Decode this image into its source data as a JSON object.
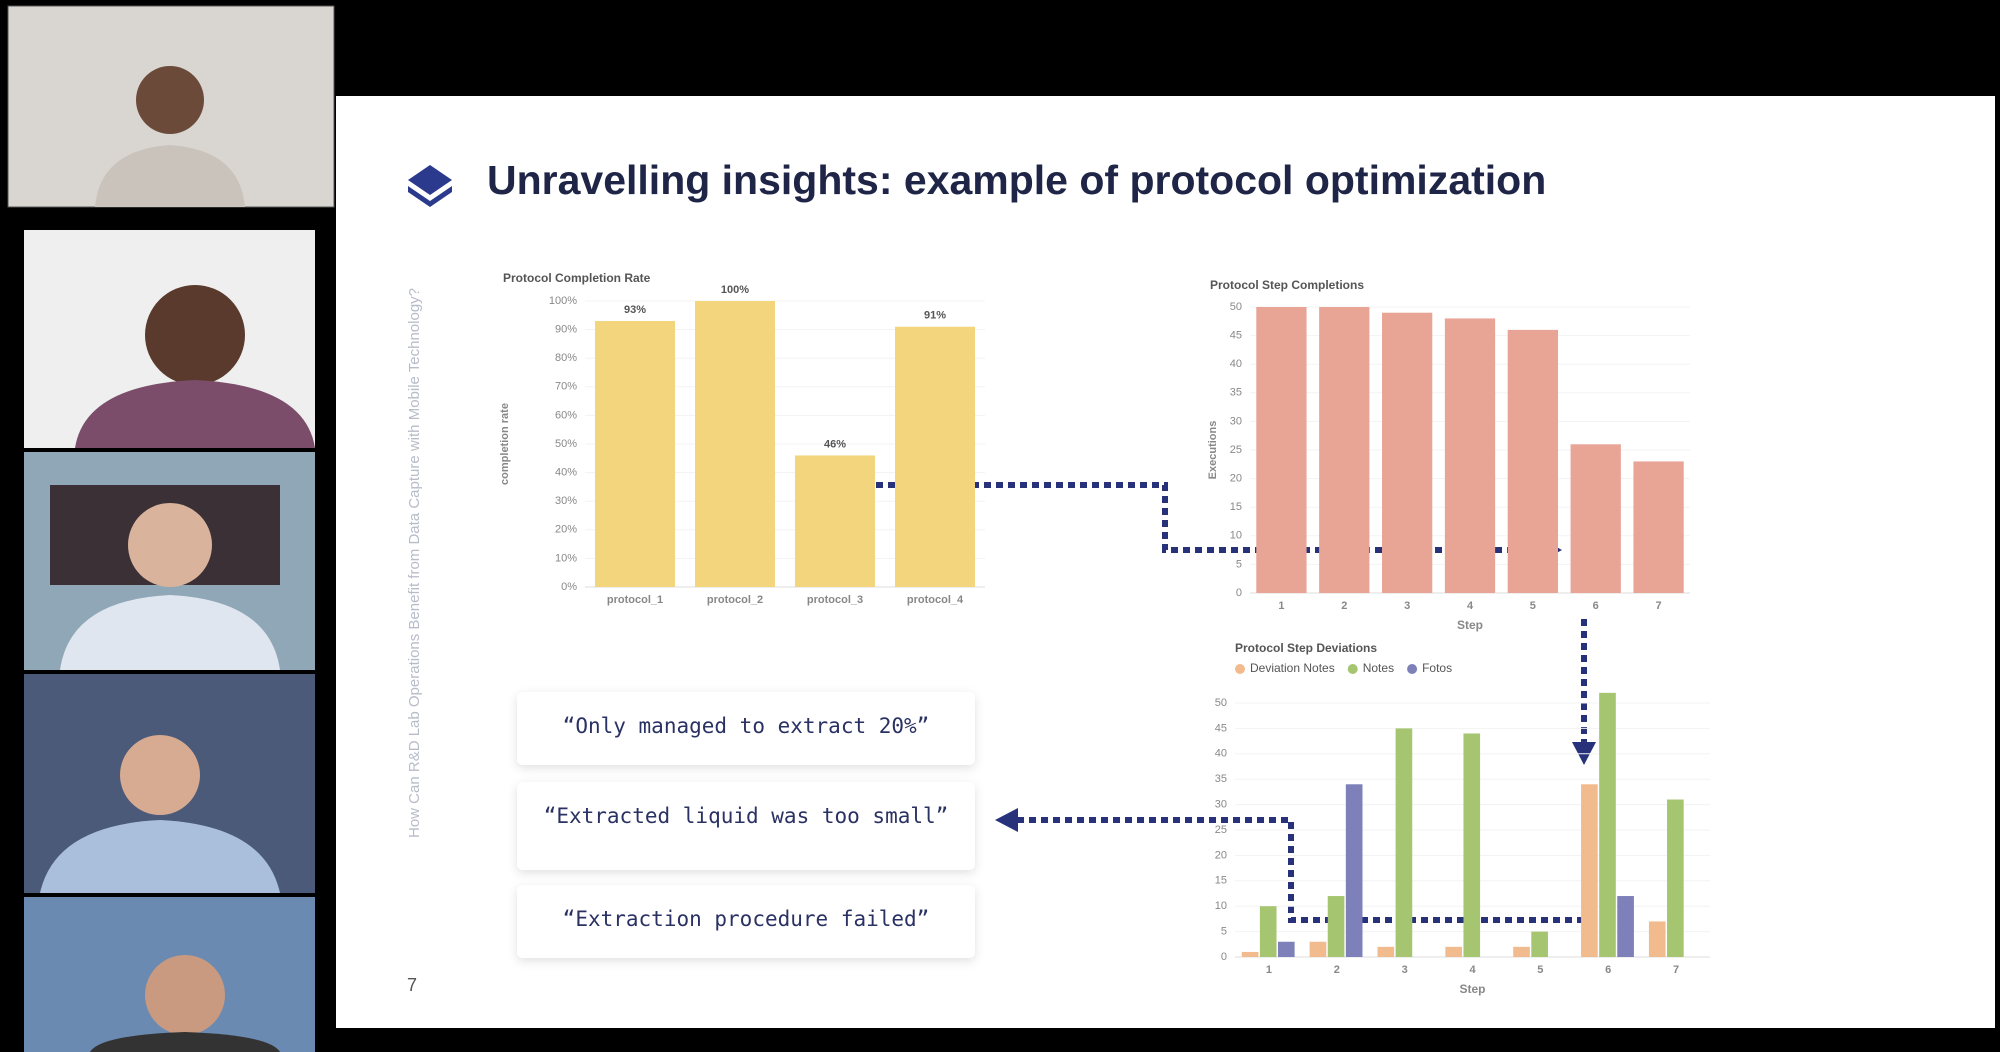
{
  "slide": {
    "title": "Unravelling insights: example of protocol optimization",
    "side_note": "How Can R&D Lab Operations Benefit from Data Capture with Mobile Technology?",
    "page_number": "7",
    "quotes": [
      "“Only managed to extract 20%”",
      "“Extracted liquid was too small”",
      "“Extraction procedure failed”"
    ]
  },
  "chart_data": [
    {
      "type": "bar",
      "title": "Protocol Completion Rate",
      "y_label": "completion rate",
      "categories": [
        "protocol_1",
        "protocol_2",
        "protocol_3",
        "protocol_4"
      ],
      "values": [
        93,
        100,
        46,
        91
      ],
      "value_labels": [
        "93%",
        "100%",
        "46%",
        "91%"
      ],
      "color": "#f2d57c",
      "ylim": [
        0,
        100
      ],
      "yticks": [
        {
          "value": 0,
          "label": "0%"
        },
        {
          "value": 10,
          "label": "10%"
        },
        {
          "value": 20,
          "label": "20%"
        },
        {
          "value": 30,
          "label": "30%"
        },
        {
          "value": 40,
          "label": "40%"
        },
        {
          "value": 50,
          "label": "50%"
        },
        {
          "value": 60,
          "label": "60%"
        },
        {
          "value": 70,
          "label": "70%"
        },
        {
          "value": 80,
          "label": "80%"
        },
        {
          "value": 90,
          "label": "90%"
        },
        {
          "value": 100,
          "label": "100%"
        }
      ]
    },
    {
      "type": "bar",
      "title": "Protocol Step Completions",
      "x_label": "Step",
      "y_label": "Executions",
      "categories": [
        "1",
        "2",
        "3",
        "4",
        "5",
        "6",
        "7"
      ],
      "values": [
        50,
        50,
        49,
        48,
        46,
        26,
        23
      ],
      "color": "#e8a595",
      "ylim": [
        0,
        50
      ],
      "yticks": [
        0,
        5,
        10,
        15,
        20,
        25,
        30,
        35,
        40,
        45,
        50
      ]
    },
    {
      "type": "grouped_bar",
      "title": "Protocol Step Deviations",
      "x_label": "Step",
      "categories": [
        "1",
        "2",
        "3",
        "4",
        "5",
        "6",
        "7"
      ],
      "series": [
        {
          "name": "Deviation Notes",
          "color": "#f2bb8e",
          "values": [
            1,
            3,
            2,
            2,
            2,
            34,
            7
          ]
        },
        {
          "name": "Notes",
          "color": "#a6c571",
          "values": [
            10,
            12,
            45,
            44,
            5,
            52,
            31
          ]
        },
        {
          "name": "Fotos",
          "color": "#7d80b9",
          "values": [
            3,
            34,
            0,
            0,
            0,
            12,
            0
          ]
        }
      ],
      "ylim": [
        0,
        55
      ],
      "yticks": [
        0,
        5,
        10,
        15,
        20,
        25,
        30,
        35,
        40,
        45,
        50
      ]
    }
  ]
}
